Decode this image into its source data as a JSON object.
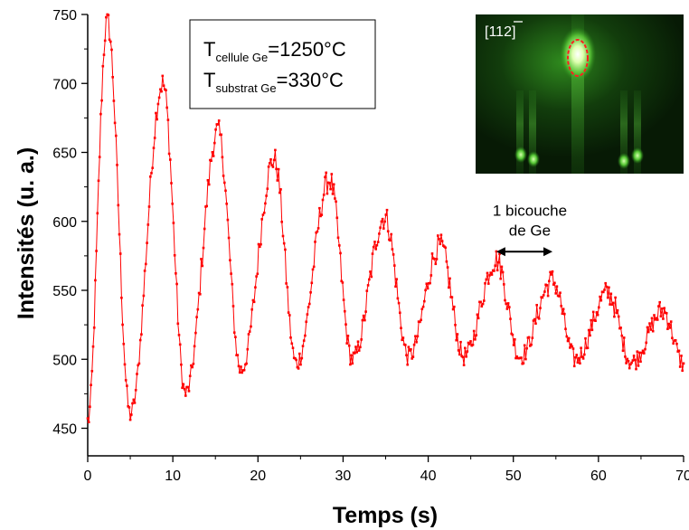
{
  "chart_data": {
    "type": "line",
    "xlabel": "Temps (s)",
    "ylabel": "Intensités (u. a.)",
    "xlim": [
      0,
      70
    ],
    "ylim": [
      430,
      750
    ],
    "x_ticks": [
      "0",
      "10",
      "20",
      "30",
      "40",
      "50",
      "60",
      "70"
    ],
    "y_ticks": [
      "450",
      "500",
      "550",
      "600",
      "650",
      "700",
      "750"
    ],
    "line_color": "#ff0000",
    "period_s": 6.55,
    "series": [
      {
        "values": [
          [
            0.0,
            455
          ],
          [
            2.3,
            745
          ],
          [
            5.0,
            460
          ],
          [
            8.8,
            700
          ],
          [
            11.5,
            475
          ],
          [
            15.3,
            665
          ],
          [
            18.0,
            492
          ],
          [
            21.9,
            645
          ],
          [
            24.5,
            497
          ],
          [
            28.4,
            630
          ],
          [
            31.1,
            500
          ],
          [
            34.9,
            603
          ],
          [
            37.7,
            502
          ],
          [
            41.4,
            582
          ],
          [
            44.2,
            502
          ],
          [
            48.0,
            572
          ],
          [
            50.8,
            502
          ],
          [
            54.6,
            557
          ],
          [
            57.3,
            500
          ],
          [
            61.1,
            548
          ],
          [
            63.9,
            498
          ],
          [
            67.6,
            535
          ],
          [
            70.0,
            497
          ]
        ]
      }
    ],
    "legend": {
      "line1_main": "T",
      "line1_sub": "cellule Ge",
      "line1_value": "=1250°C",
      "line2_main": "T",
      "line2_sub": "substrat Ge",
      "line2_value": "=330°C"
    },
    "annotation": {
      "line1": "1 bicouche",
      "line2": "de Ge",
      "x_start": 48.0,
      "x_end": 54.6,
      "y": 578
    },
    "inset": {
      "label_prefix": "[11",
      "label_overbar": "2",
      "label_suffix": "]"
    }
  }
}
